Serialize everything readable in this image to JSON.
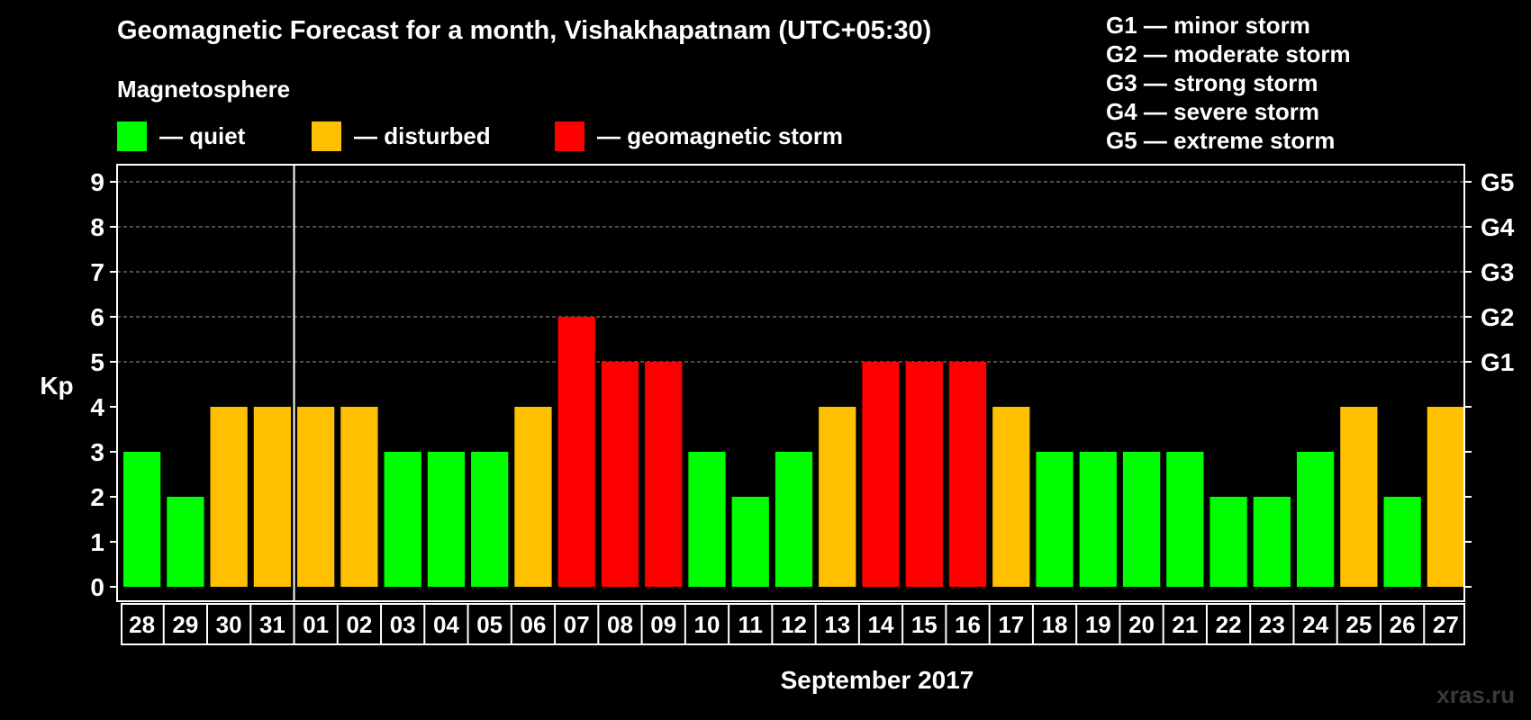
{
  "header": {
    "title": "Geomagnetic Forecast for a month, Vishakhapatnam (UTC+05:30)",
    "section_label": "Magnetosphere"
  },
  "legend": [
    {
      "label": "— quiet",
      "color": "#00ff00"
    },
    {
      "label": "— disturbed",
      "color": "#ffc000"
    },
    {
      "label": "— geomagnetic storm",
      "color": "#ff0000"
    }
  ],
  "gscale": [
    "G1 — minor storm",
    "G2 — moderate storm",
    "G3 — strong storm",
    "G4 — severe storm",
    "G5 — extreme storm"
  ],
  "watermark": "xras.ru",
  "chart_data": {
    "type": "bar",
    "ylabel": "Kp",
    "xlabel": "September 2017",
    "ylim": [
      0,
      9
    ],
    "yticks": [
      0,
      1,
      2,
      3,
      4,
      5,
      6,
      7,
      8,
      9
    ],
    "right_axis_labels": [
      {
        "value": 5,
        "label": "G1"
      },
      {
        "value": 6,
        "label": "G2"
      },
      {
        "value": 7,
        "label": "G3"
      },
      {
        "value": 8,
        "label": "G4"
      },
      {
        "value": 9,
        "label": "G5"
      }
    ],
    "grid": "dashed horizontal lines at Kp 5-9",
    "categories": [
      "28",
      "29",
      "30",
      "31",
      "01",
      "02",
      "03",
      "04",
      "05",
      "06",
      "07",
      "08",
      "09",
      "10",
      "11",
      "12",
      "13",
      "14",
      "15",
      "16",
      "17",
      "18",
      "19",
      "20",
      "21",
      "22",
      "23",
      "24",
      "25",
      "26",
      "27"
    ],
    "values": [
      3,
      2,
      4,
      4,
      4,
      4,
      3,
      3,
      3,
      4,
      6,
      5,
      5,
      3,
      2,
      3,
      4,
      5,
      5,
      5,
      4,
      3,
      3,
      3,
      3,
      2,
      2,
      3,
      4,
      2,
      4
    ],
    "month_divider_after": "31",
    "colors": {
      "quiet": "#00ff00",
      "disturbed": "#ffc000",
      "storm": "#ff0000"
    }
  }
}
